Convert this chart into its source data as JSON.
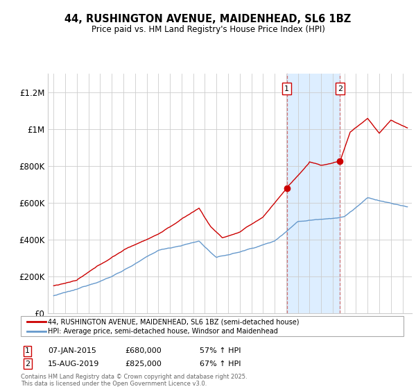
{
  "title": "44, RUSHINGTON AVENUE, MAIDENHEAD, SL6 1BZ",
  "subtitle": "Price paid vs. HM Land Registry's House Price Index (HPI)",
  "legend_line1": "44, RUSHINGTON AVENUE, MAIDENHEAD, SL6 1BZ (semi-detached house)",
  "legend_line2": "HPI: Average price, semi-detached house, Windsor and Maidenhead",
  "annotation1_label": "1",
  "annotation1_date": "07-JAN-2015",
  "annotation1_price": 680000,
  "annotation1_pct": "57% ↑ HPI",
  "annotation2_label": "2",
  "annotation2_date": "15-AUG-2019",
  "annotation2_price": 825000,
  "annotation2_pct": "67% ↑ HPI",
  "footnote": "Contains HM Land Registry data © Crown copyright and database right 2025.\nThis data is licensed under the Open Government Licence v3.0.",
  "line_color_red": "#cc0000",
  "line_color_blue": "#6699cc",
  "background_color": "#ffffff",
  "grid_color": "#cccccc",
  "highlight_color": "#ddeeff",
  "sale1_year": 2015.04,
  "sale2_year": 2019.62,
  "sale1_price": 680000,
  "sale2_price": 825000,
  "ylim": [
    0,
    1300000
  ],
  "yticks": [
    0,
    200000,
    400000,
    600000,
    800000,
    1000000,
    1200000
  ],
  "ytick_labels": [
    "£0",
    "£200K",
    "£400K",
    "£600K",
    "£800K",
    "£1M",
    "£1.2M"
  ],
  "xlim_start": 1994.5,
  "xlim_end": 2025.8
}
